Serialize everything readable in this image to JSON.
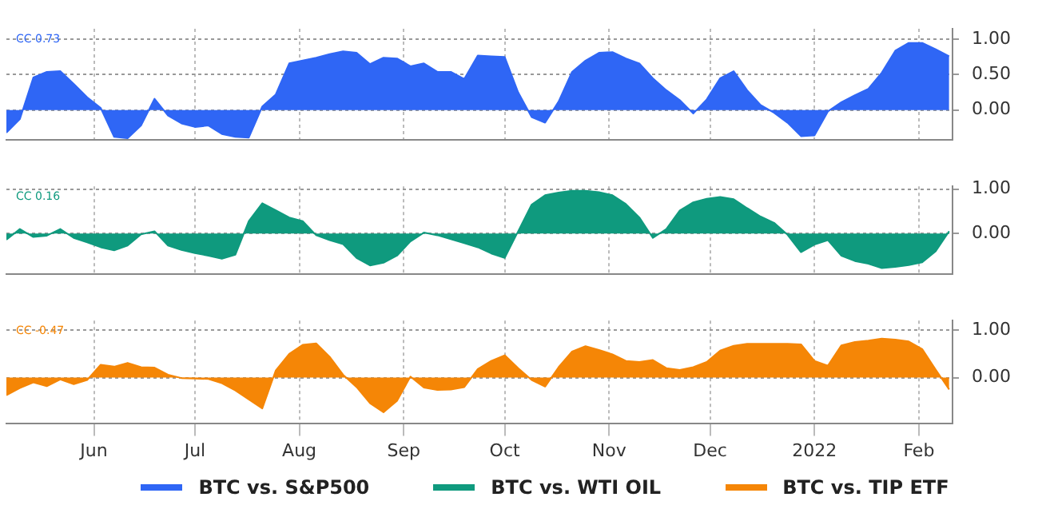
{
  "chart_data": [
    {
      "type": "area",
      "x": [
        "2021-05-06",
        "2021-05-10",
        "2021-05-14",
        "2021-05-18",
        "2021-05-22",
        "2021-05-26",
        "2021-05-30",
        "2021-06-03",
        "2021-06-07",
        "2021-06-11",
        "2021-06-15",
        "2021-06-19",
        "2021-06-23",
        "2021-06-27",
        "2021-07-01",
        "2021-07-05",
        "2021-07-09",
        "2021-07-13",
        "2021-07-17",
        "2021-07-21",
        "2021-07-25",
        "2021-07-29",
        "2021-08-02",
        "2021-08-06",
        "2021-08-10",
        "2021-08-14",
        "2021-08-18",
        "2021-08-22",
        "2021-08-26",
        "2021-08-30",
        "2021-09-03",
        "2021-09-07",
        "2021-09-11",
        "2021-09-15",
        "2021-09-19",
        "2021-09-23",
        "2021-09-27",
        "2021-10-01",
        "2021-10-05",
        "2021-10-09",
        "2021-10-13",
        "2021-10-17",
        "2021-10-21",
        "2021-10-25",
        "2021-10-29",
        "2021-11-02",
        "2021-11-06",
        "2021-11-10",
        "2021-11-14",
        "2021-11-18",
        "2021-11-22",
        "2021-11-26",
        "2021-11-30",
        "2021-12-04",
        "2021-12-08",
        "2021-12-12",
        "2021-12-16",
        "2021-12-20",
        "2021-12-24",
        "2021-12-28",
        "2022-01-01",
        "2022-01-05",
        "2022-01-09",
        "2022-01-13",
        "2022-01-17",
        "2022-01-21",
        "2022-01-25",
        "2022-01-29",
        "2022-02-02",
        "2022-02-06",
        "2022-02-10"
      ],
      "series": [
        {
          "name": "BTC vs. S&P500",
          "color": "#2f66f5",
          "values": [
            -0.32,
            -0.13,
            0.46,
            0.54,
            0.55,
            0.37,
            0.18,
            0.03,
            -0.38,
            -0.4,
            -0.22,
            0.16,
            -0.08,
            -0.19,
            -0.24,
            -0.22,
            -0.34,
            -0.38,
            -0.39,
            0.05,
            0.22,
            0.66,
            0.7,
            0.74,
            0.79,
            0.83,
            0.81,
            0.65,
            0.74,
            0.73,
            0.62,
            0.66,
            0.54,
            0.54,
            0.44,
            0.77,
            0.76,
            0.75,
            0.25,
            -0.1,
            -0.18,
            0.12,
            0.54,
            0.7,
            0.81,
            0.82,
            0.73,
            0.66,
            0.45,
            0.28,
            0.14,
            -0.05,
            0.15,
            0.45,
            0.55,
            0.28,
            0.07,
            -0.04,
            -0.18,
            -0.37,
            -0.36,
            -0.02,
            0.11,
            0.21,
            0.3,
            0.53,
            0.84,
            0.95,
            0.95,
            0.86,
            0.76
          ]
        }
      ],
      "xlim": [
        "2021-05-06",
        "2022-02-11"
      ],
      "xticks": [
        {
          "value": "2021-06-01",
          "label": null
        },
        {
          "value": "2021-07-01",
          "label": null
        },
        {
          "value": "2021-08-01",
          "label": null
        },
        {
          "value": "2021-09-01",
          "label": null
        },
        {
          "value": "2021-10-01",
          "label": null
        },
        {
          "value": "2021-11-01",
          "label": null
        },
        {
          "value": "2021-12-01",
          "label": null
        },
        {
          "value": "2022-01-01",
          "label": null
        },
        {
          "value": "2022-02-01",
          "label": null
        }
      ],
      "ylim": [
        -0.42,
        1.15
      ],
      "yticks": [
        {
          "value": 0,
          "label": "0.00"
        },
        {
          "value": 0.5,
          "label": "0.50"
        },
        {
          "value": 1,
          "label": "1.00"
        }
      ],
      "tick_labels": "y",
      "grid": true,
      "legend": "bottom",
      "annotations": [
        "CC 0.73"
      ]
    },
    {
      "type": "area",
      "x": [
        "2021-05-06",
        "2021-05-10",
        "2021-05-14",
        "2021-05-18",
        "2021-05-22",
        "2021-05-26",
        "2021-05-30",
        "2021-06-03",
        "2021-06-07",
        "2021-06-11",
        "2021-06-15",
        "2021-06-19",
        "2021-06-23",
        "2021-06-27",
        "2021-07-01",
        "2021-07-05",
        "2021-07-09",
        "2021-07-13",
        "2021-07-17",
        "2021-07-21",
        "2021-07-25",
        "2021-07-29",
        "2021-08-02",
        "2021-08-06",
        "2021-08-10",
        "2021-08-14",
        "2021-08-18",
        "2021-08-22",
        "2021-08-26",
        "2021-08-30",
        "2021-09-03",
        "2021-09-07",
        "2021-09-11",
        "2021-09-15",
        "2021-09-19",
        "2021-09-23",
        "2021-09-27",
        "2021-10-01",
        "2021-10-05",
        "2021-10-09",
        "2021-10-13",
        "2021-10-17",
        "2021-10-21",
        "2021-10-25",
        "2021-10-29",
        "2021-11-02",
        "2021-11-06",
        "2021-11-10",
        "2021-11-14",
        "2021-11-18",
        "2021-11-22",
        "2021-11-26",
        "2021-11-30",
        "2021-12-04",
        "2021-12-08",
        "2021-12-12",
        "2021-12-16",
        "2021-12-20",
        "2021-12-24",
        "2021-12-28",
        "2022-01-01",
        "2022-01-05",
        "2022-01-09",
        "2022-01-13",
        "2022-01-17",
        "2022-01-21",
        "2022-01-25",
        "2022-01-29",
        "2022-02-02",
        "2022-02-06",
        "2022-02-10"
      ],
      "series": [
        {
          "name": "BTC vs. WTI OIL",
          "color": "#0f9a7e",
          "values": [
            -0.14,
            0.1,
            -0.08,
            -0.05,
            0.1,
            -0.1,
            -0.2,
            -0.31,
            -0.38,
            -0.27,
            -0.02,
            0.05,
            -0.27,
            -0.37,
            -0.44,
            -0.5,
            -0.57,
            -0.48,
            0.28,
            0.68,
            0.52,
            0.36,
            0.28,
            -0.04,
            -0.15,
            -0.24,
            -0.55,
            -0.72,
            -0.66,
            -0.5,
            -0.18,
            0.02,
            -0.04,
            -0.13,
            -0.22,
            -0.31,
            -0.45,
            -0.55,
            0.05,
            0.65,
            0.86,
            0.92,
            0.96,
            0.96,
            0.93,
            0.86,
            0.66,
            0.36,
            -0.1,
            0.1,
            0.52,
            0.7,
            0.78,
            0.82,
            0.77,
            0.57,
            0.38,
            0.24,
            -0.03,
            -0.42,
            -0.25,
            -0.15,
            -0.5,
            -0.62,
            -0.68,
            -0.78,
            -0.75,
            -0.71,
            -0.65,
            -0.4,
            0.05
          ]
        }
      ],
      "xlim": [
        "2021-05-06",
        "2022-02-11"
      ],
      "xticks": [
        {
          "value": "2021-06-01",
          "label": null
        },
        {
          "value": "2021-07-01",
          "label": null
        },
        {
          "value": "2021-08-01",
          "label": null
        },
        {
          "value": "2021-09-01",
          "label": null
        },
        {
          "value": "2021-10-01",
          "label": null
        },
        {
          "value": "2021-11-01",
          "label": null
        },
        {
          "value": "2021-12-01",
          "label": null
        },
        {
          "value": "2022-01-01",
          "label": null
        },
        {
          "value": "2022-02-01",
          "label": null
        }
      ],
      "ylim": [
        -0.91,
        1.06
      ],
      "yticks": [
        {
          "value": 0,
          "label": "0.00"
        },
        {
          "value": 1,
          "label": "1.00"
        }
      ],
      "tick_labels": "y",
      "grid": true,
      "legend": "bottom",
      "annotations": [
        "CC 0.16"
      ]
    },
    {
      "type": "area",
      "x": [
        "2021-05-06",
        "2021-05-10",
        "2021-05-14",
        "2021-05-18",
        "2021-05-22",
        "2021-05-26",
        "2021-05-30",
        "2021-06-03",
        "2021-06-07",
        "2021-06-11",
        "2021-06-15",
        "2021-06-19",
        "2021-06-23",
        "2021-06-27",
        "2021-07-01",
        "2021-07-05",
        "2021-07-09",
        "2021-07-13",
        "2021-07-17",
        "2021-07-21",
        "2021-07-25",
        "2021-07-29",
        "2021-08-02",
        "2021-08-06",
        "2021-08-10",
        "2021-08-14",
        "2021-08-18",
        "2021-08-22",
        "2021-08-26",
        "2021-08-30",
        "2021-09-03",
        "2021-09-07",
        "2021-09-11",
        "2021-09-15",
        "2021-09-19",
        "2021-09-23",
        "2021-09-27",
        "2021-10-01",
        "2021-10-05",
        "2021-10-09",
        "2021-10-13",
        "2021-10-17",
        "2021-10-21",
        "2021-10-25",
        "2021-10-29",
        "2021-11-02",
        "2021-11-06",
        "2021-11-10",
        "2021-11-14",
        "2021-11-18",
        "2021-11-22",
        "2021-11-26",
        "2021-11-30",
        "2021-12-04",
        "2021-12-08",
        "2021-12-12",
        "2021-12-16",
        "2021-12-20",
        "2021-12-24",
        "2021-12-28",
        "2022-01-01",
        "2022-01-05",
        "2022-01-09",
        "2022-01-13",
        "2022-01-17",
        "2022-01-21",
        "2022-01-25",
        "2022-01-29",
        "2022-02-02",
        "2022-02-06",
        "2022-02-10"
      ],
      "series": [
        {
          "name": "BTC vs. TIP ETF",
          "color": "#f58606",
          "values": [
            -0.37,
            -0.22,
            -0.1,
            -0.18,
            -0.04,
            -0.14,
            -0.05,
            0.27,
            0.23,
            0.31,
            0.22,
            0.21,
            0.06,
            -0.01,
            -0.02,
            -0.03,
            -0.12,
            -0.27,
            -0.46,
            -0.65,
            0.15,
            0.5,
            0.69,
            0.72,
            0.44,
            0.06,
            -0.2,
            -0.54,
            -0.73,
            -0.49,
            0.02,
            -0.21,
            -0.26,
            -0.25,
            -0.2,
            0.18,
            0.35,
            0.47,
            0.2,
            -0.05,
            -0.19,
            0.22,
            0.55,
            0.66,
            0.58,
            0.49,
            0.35,
            0.33,
            0.37,
            0.2,
            0.16,
            0.22,
            0.33,
            0.57,
            0.67,
            0.71,
            0.71,
            0.71,
            0.71,
            0.7,
            0.35,
            0.25,
            0.68,
            0.75,
            0.78,
            0.82,
            0.8,
            0.76,
            0.6,
            0.17,
            -0.25
          ]
        }
      ],
      "xlim": [
        "2021-05-06",
        "2022-02-11"
      ],
      "xticks": [
        {
          "value": "2021-06-01",
          "label": "Jun"
        },
        {
          "value": "2021-07-01",
          "label": "Jul"
        },
        {
          "value": "2021-08-01",
          "label": "Aug"
        },
        {
          "value": "2021-09-01",
          "label": "Sep"
        },
        {
          "value": "2021-10-01",
          "label": "Oct"
        },
        {
          "value": "2021-11-01",
          "label": "Nov"
        },
        {
          "value": "2021-12-01",
          "label": "Dec"
        },
        {
          "value": "2022-01-01",
          "label": "2022"
        },
        {
          "value": "2022-02-01",
          "label": "Feb"
        }
      ],
      "ylim": [
        -0.96,
        1.2
      ],
      "yticks": [
        {
          "value": 0,
          "label": "0.00"
        },
        {
          "value": 1,
          "label": "1.00"
        }
      ],
      "grid": true,
      "legend": "bottom",
      "annotations": [
        "CC -0.47"
      ]
    }
  ]
}
